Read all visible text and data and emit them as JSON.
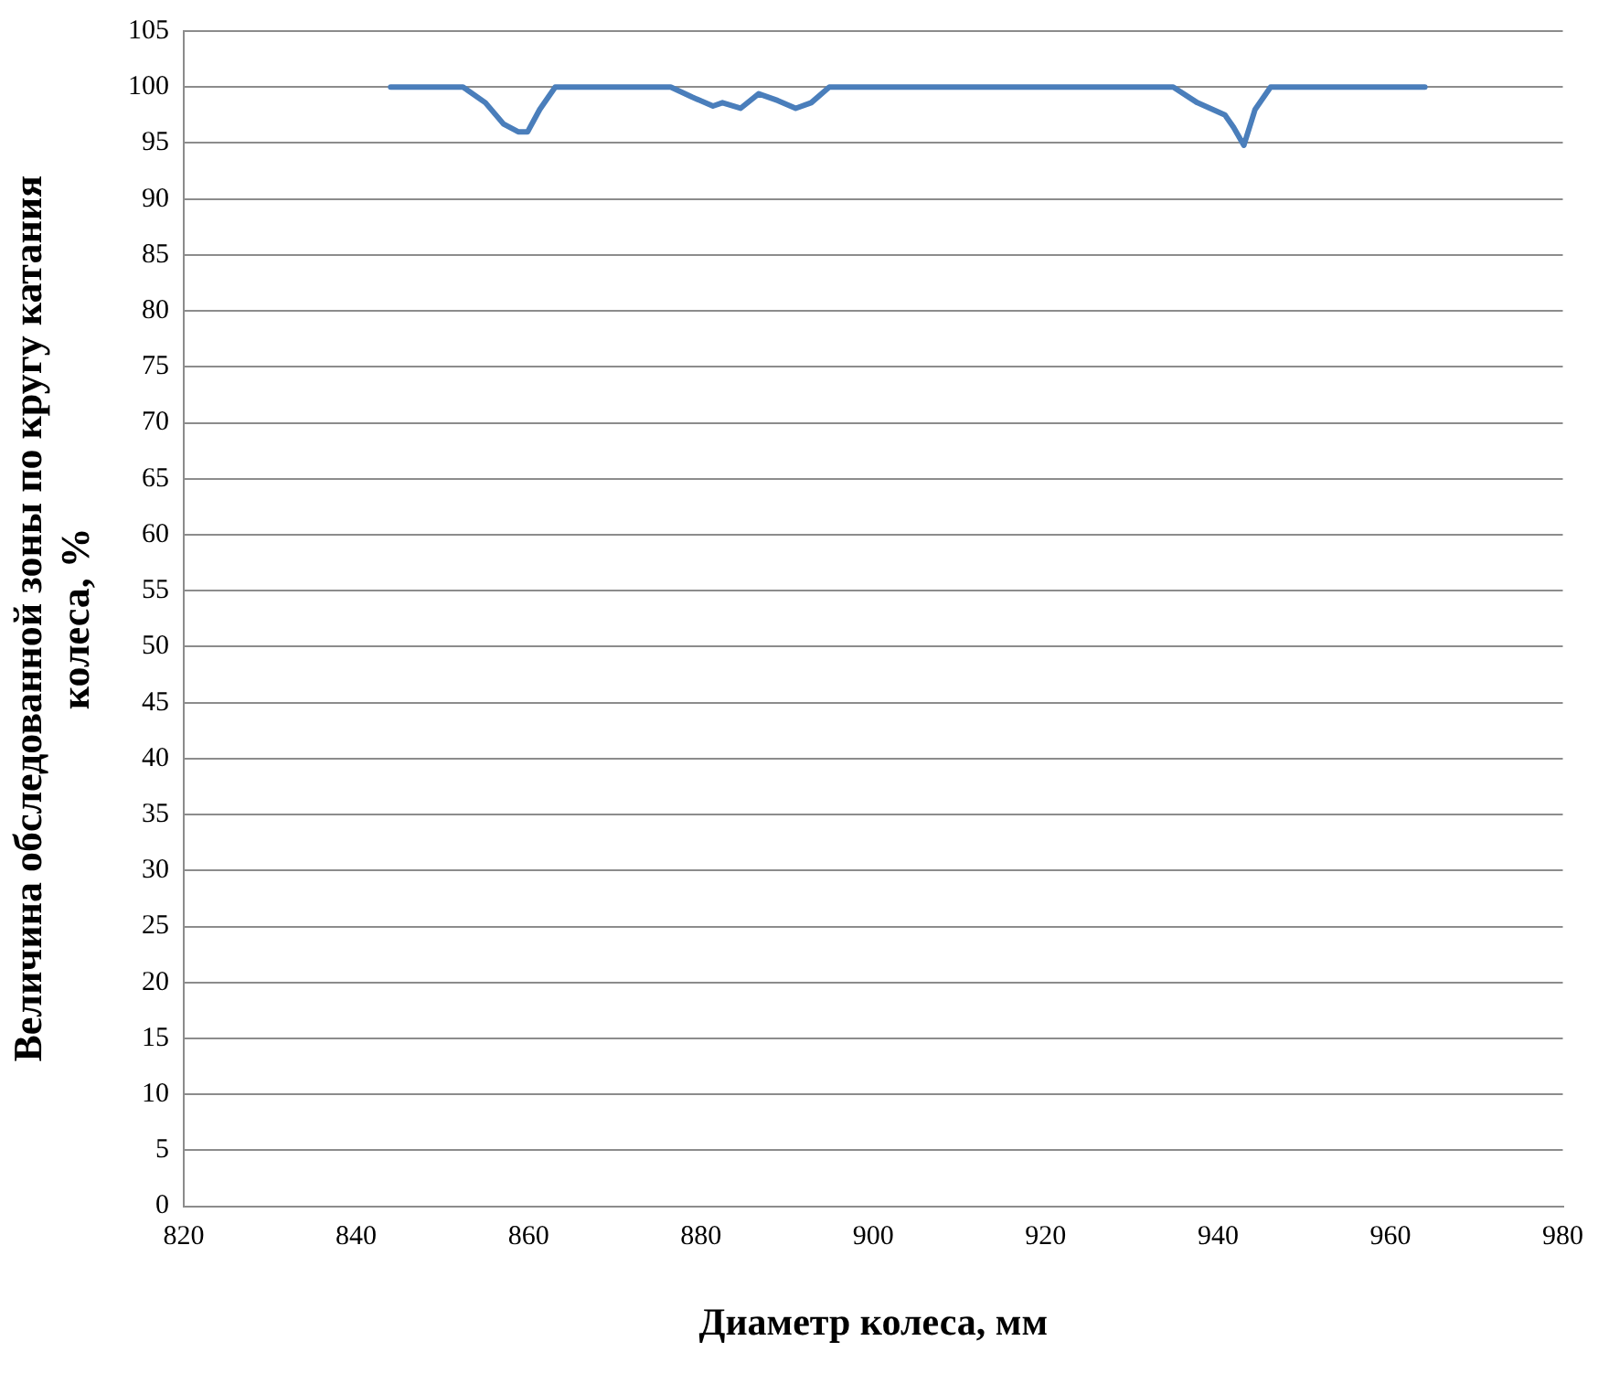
{
  "chart_data": {
    "type": "line",
    "xlabel": "Диаметр колеса, мм",
    "ylabel": "Величина обследованной зоны по кругу катания колеса, %",
    "x": [
      844,
      852.4,
      855,
      857.1,
      858.8,
      859.9,
      861.3,
      863.1,
      876.5,
      879,
      881.4,
      882.5,
      884.6,
      886.7,
      888.9,
      891,
      892.8,
      894.9,
      934.8,
      937.6,
      940.8,
      941.8,
      943,
      944.3,
      946.1,
      964
    ],
    "series": [
      {
        "color": "#4a7ebb",
        "values": [
          100,
          100,
          98.6,
          96.7,
          96,
          96,
          98,
          100,
          100,
          99.1,
          98.3,
          98.6,
          98.1,
          99.4,
          98.8,
          98.1,
          98.6,
          100,
          100,
          98.6,
          97.5,
          96.4,
          94.8,
          98,
          100,
          100
        ]
      }
    ],
    "xlim": [
      820,
      980
    ],
    "xticks": [
      820,
      840,
      860,
      880,
      900,
      920,
      940,
      960,
      980
    ],
    "ylim": [
      0,
      105
    ],
    "yticks": [
      0,
      5,
      10,
      15,
      20,
      25,
      30,
      35,
      40,
      45,
      50,
      55,
      60,
      65,
      70,
      75,
      80,
      85,
      90,
      95,
      100,
      105
    ],
    "grid": "y",
    "legend": false,
    "marker": "none",
    "line_style": "solid"
  }
}
